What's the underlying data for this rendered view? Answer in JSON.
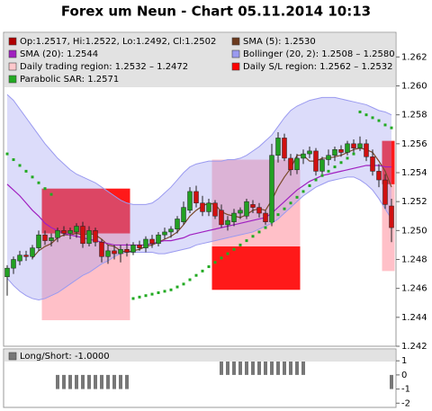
{
  "chart_data": [
    {
      "type": "candlestick",
      "title": "Forex um Neun - Chart 05.11.2014 10:13",
      "legend": [
        {
          "label": "Op:1.2517, Hi:1.2522, Lo:1.2492, Cl:1.2502",
          "color": "#b00000"
        },
        {
          "label": "SMA (5): 1.2530",
          "color": "#6b3a1e"
        },
        {
          "label": "SMA (20): 1.2544",
          "color": "#a020c0"
        },
        {
          "label": "Bollinger (20, 2): 1.2508 – 1.2580",
          "color": "#9a9af0"
        },
        {
          "label": "Daily trading region: 1.2532 – 1.2472",
          "color": "#ffc8cc"
        },
        {
          "label": "Daily S/L region: 1.2562 – 1.2532",
          "color": "#ff0000"
        },
        {
          "label": "Parabolic SAR: 1.2571",
          "color": "#22aa22"
        }
      ],
      "ohlc": {
        "up_color": "#22a022",
        "down_color": "#d01010",
        "open": [
          1.2468,
          1.2474,
          1.2479,
          1.2483,
          1.2482,
          1.2488,
          1.2497,
          1.2493,
          1.2495,
          1.25,
          1.2498,
          1.2499,
          1.2503,
          1.2491,
          1.25,
          1.2492,
          1.2482,
          1.2486,
          1.2484,
          1.2487,
          1.2485,
          1.249,
          1.2488,
          1.2494,
          1.2491,
          1.2497,
          1.2499,
          1.2501,
          1.2506,
          1.2514,
          1.2527,
          1.2519,
          1.2513,
          1.2519,
          1.2514,
          1.2504,
          1.2506,
          1.2512,
          1.251,
          1.2518,
          1.2516,
          1.2512,
          1.2506,
          1.2552,
          1.2564,
          1.255,
          1.2542,
          1.255,
          1.2553,
          1.2555,
          1.2541,
          1.2549,
          1.2552,
          1.2556,
          1.2554,
          1.256,
          1.2557,
          1.256,
          1.2551,
          1.2541,
          1.2535,
          1.2517
        ],
        "high": [
          1.2476,
          1.2482,
          1.2486,
          1.2486,
          1.249,
          1.25,
          1.25,
          1.2498,
          1.2502,
          1.2503,
          1.2502,
          1.2505,
          1.2506,
          1.2503,
          1.2502,
          1.2494,
          1.249,
          1.249,
          1.249,
          1.2491,
          1.2492,
          1.2493,
          1.2496,
          1.2497,
          1.2499,
          1.2502,
          1.2503,
          1.251,
          1.252,
          1.253,
          1.2531,
          1.2524,
          1.2522,
          1.2521,
          1.2518,
          1.251,
          1.2515,
          1.2516,
          1.2522,
          1.2521,
          1.2519,
          1.2514,
          1.256,
          1.2568,
          1.2567,
          1.2553,
          1.2553,
          1.2556,
          1.2558,
          1.2557,
          1.2551,
          1.2556,
          1.2558,
          1.2559,
          1.2562,
          1.2563,
          1.2565,
          1.2563,
          1.2556,
          1.2546,
          1.2539,
          1.2522
        ],
        "low": [
          1.2455,
          1.247,
          1.2476,
          1.2479,
          1.248,
          1.2486,
          1.249,
          1.2489,
          1.2492,
          1.2496,
          1.2494,
          1.2495,
          1.2488,
          1.2489,
          1.2489,
          1.2478,
          1.2477,
          1.248,
          1.2478,
          1.2482,
          1.2483,
          1.2486,
          1.2485,
          1.2488,
          1.2489,
          1.2494,
          1.2495,
          1.2498,
          1.2504,
          1.2512,
          1.2516,
          1.251,
          1.251,
          1.2508,
          1.2502,
          1.25,
          1.2503,
          1.2508,
          1.2508,
          1.2512,
          1.2509,
          1.2504,
          1.2503,
          1.2547,
          1.2548,
          1.2538,
          1.2539,
          1.2546,
          1.255,
          1.2538,
          1.2539,
          1.2545,
          1.2548,
          1.2551,
          1.2552,
          1.2554,
          1.2555,
          1.2548,
          1.2538,
          1.253,
          1.2515,
          1.2492
        ],
        "close": [
          1.2474,
          1.248,
          1.2483,
          1.2482,
          1.2488,
          1.2497,
          1.2493,
          1.2495,
          1.25,
          1.2498,
          1.25,
          1.2503,
          1.2491,
          1.25,
          1.2492,
          1.2482,
          1.2486,
          1.2484,
          1.2487,
          1.2485,
          1.249,
          1.2488,
          1.2494,
          1.2491,
          1.2497,
          1.2499,
          1.2501,
          1.2508,
          1.2516,
          1.2527,
          1.2519,
          1.2513,
          1.2519,
          1.251,
          1.2504,
          1.2507,
          1.2512,
          1.2514,
          1.252,
          1.2516,
          1.2512,
          1.2506,
          1.2552,
          1.2564,
          1.255,
          1.2542,
          1.255,
          1.2553,
          1.2555,
          1.2541,
          1.2549,
          1.2552,
          1.2556,
          1.2554,
          1.256,
          1.2557,
          1.256,
          1.2551,
          1.2541,
          1.2535,
          1.2518,
          1.2502
        ]
      },
      "band": {
        "color": "#9a9af0",
        "upper": [
          1.2594,
          1.259,
          1.2584,
          1.2578,
          1.2572,
          1.2566,
          1.256,
          1.2555,
          1.255,
          1.2546,
          1.2542,
          1.2539,
          1.2537,
          1.2535,
          1.2533,
          1.253,
          1.2527,
          1.2524,
          1.2521,
          1.2519,
          1.2518,
          1.2518,
          1.2518,
          1.2519,
          1.2522,
          1.2526,
          1.253,
          1.2535,
          1.254,
          1.2544,
          1.2546,
          1.2547,
          1.2548,
          1.2548,
          1.2548,
          1.2549,
          1.2549,
          1.255,
          1.2552,
          1.2555,
          1.2558,
          1.2562,
          1.2566,
          1.2572,
          1.2578,
          1.2583,
          1.2586,
          1.2588,
          1.259,
          1.2591,
          1.2592,
          1.2592,
          1.2592,
          1.2591,
          1.259,
          1.2589,
          1.2588,
          1.2587,
          1.2585,
          1.2583,
          1.2582,
          1.258
        ],
        "lower": [
          1.2467,
          1.2462,
          1.2458,
          1.2455,
          1.2453,
          1.2452,
          1.2453,
          1.2455,
          1.2457,
          1.246,
          1.2463,
          1.2466,
          1.2469,
          1.2471,
          1.2474,
          1.2477,
          1.2479,
          1.2482,
          1.2484,
          1.2485,
          1.2485,
          1.2485,
          1.2485,
          1.2485,
          1.2484,
          1.2484,
          1.2485,
          1.2486,
          1.2487,
          1.2488,
          1.249,
          1.2491,
          1.2492,
          1.2493,
          1.2494,
          1.2495,
          1.2496,
          1.2497,
          1.2498,
          1.2499,
          1.2501,
          1.2503,
          1.2505,
          1.2508,
          1.2512,
          1.2516,
          1.252,
          1.2524,
          1.2527,
          1.253,
          1.2532,
          1.2534,
          1.2535,
          1.2536,
          1.2537,
          1.2537,
          1.2535,
          1.2532,
          1.2528,
          1.2522,
          1.2515,
          1.2508
        ]
      },
      "series": [
        {
          "kind": "line",
          "color": "#7a4a2a",
          "values": [
            null,
            null,
            null,
            null,
            1.2481,
            1.2486,
            1.2489,
            1.2491,
            1.2495,
            1.2497,
            1.2497,
            1.2498,
            1.2497,
            1.2498,
            1.2497,
            1.2494,
            1.249,
            1.2489,
            1.2486,
            1.2485,
            1.2486,
            1.2487,
            1.2489,
            1.249,
            1.2492,
            1.2494,
            1.2496,
            1.2499,
            1.2504,
            1.251,
            1.2514,
            1.2517,
            1.2519,
            1.2518,
            1.2513,
            1.2511,
            1.251,
            1.2509,
            1.2511,
            1.2514,
            1.2515,
            1.2514,
            1.2521,
            1.253,
            1.2537,
            1.2543,
            1.2552,
            1.2552,
            1.2548,
            1.2548,
            1.255,
            1.255,
            1.2551,
            1.2552,
            1.2554,
            1.2556,
            1.2557,
            1.2556,
            1.2554,
            1.2548,
            1.2541,
            1.253
          ]
        },
        {
          "kind": "line",
          "color": "#a020c0",
          "values": [
            1.2532,
            1.2528,
            1.2524,
            1.2519,
            1.2514,
            1.251,
            1.2505,
            1.2502,
            1.25,
            1.2498,
            1.2497,
            1.2496,
            1.2495,
            1.2494,
            1.2493,
            1.2492,
            1.2491,
            1.249,
            1.249,
            1.249,
            1.249,
            1.249,
            1.249,
            1.2491,
            1.2492,
            1.2493,
            1.2493,
            1.2494,
            1.2495,
            1.2497,
            1.2498,
            1.2499,
            1.25,
            1.2501,
            1.2502,
            1.2503,
            1.2504,
            1.2505,
            1.2506,
            1.2507,
            1.2508,
            1.2509,
            1.2512,
            1.2516,
            1.252,
            1.2524,
            1.2528,
            1.2531,
            1.2534,
            1.2536,
            1.2538,
            1.2539,
            1.254,
            1.2541,
            1.2542,
            1.2543,
            1.2544,
            1.2545,
            1.2545,
            1.2545,
            1.2544,
            1.2544
          ]
        },
        {
          "kind": "dots",
          "color": "#22aa22",
          "values": [
            1.2553,
            1.2549,
            1.2545,
            1.2541,
            1.2537,
            1.2533,
            1.2529,
            1.2525,
            null,
            null,
            null,
            null,
            null,
            null,
            null,
            null,
            null,
            null,
            null,
            null,
            1.2453,
            1.2454,
            1.2455,
            1.2456,
            1.2457,
            1.2458,
            1.2459,
            1.2461,
            1.2463,
            1.2466,
            1.2469,
            1.2472,
            1.2475,
            1.2478,
            1.2481,
            1.2484,
            1.2487,
            1.249,
            1.2493,
            1.2496,
            1.2499,
            1.2502,
            1.2506,
            1.2511,
            1.2515,
            1.2519,
            1.2523,
            1.2527,
            1.2531,
            1.2535,
            1.2538,
            1.2541,
            1.2544,
            1.2547,
            1.255,
            1.2553,
            1.2582,
            1.258,
            1.2578,
            1.2576,
            1.2573,
            1.2571
          ]
        }
      ],
      "regions": [
        {
          "start": 6,
          "end": 19,
          "trading": [
            1.2498,
            1.2438
          ],
          "sl": [
            1.2529,
            1.2498
          ]
        },
        {
          "start": 33,
          "end": 46,
          "trading": [
            1.2549,
            1.2489
          ],
          "sl": [
            1.2489,
            1.2459
          ]
        },
        {
          "start": 60,
          "end": 61,
          "trading": [
            1.2532,
            1.2472
          ],
          "sl": [
            1.2562,
            1.2532
          ]
        }
      ],
      "trading_color": "#ffc0c8",
      "sl_color": "#ff0000",
      "ylim": [
        1.242,
        1.2637
      ],
      "yticks": [
        1.242,
        1.244,
        1.246,
        1.248,
        {
          "value": 1.25,
          "label": "1.250"
        },
        1.252,
        1.254,
        1.256,
        1.258,
        {
          "value": 1.26,
          "label": "1.260"
        },
        1.262
      ]
    },
    {
      "type": "bar",
      "legend": [
        {
          "label": "Long/Short: -1.0000",
          "color": "#777777"
        }
      ],
      "color": "#777777",
      "values": [
        0,
        0,
        0,
        0,
        0,
        0,
        0,
        0,
        -1,
        -1,
        -1,
        -1,
        -1,
        -1,
        -1,
        -1,
        -1,
        -1,
        -1,
        -1,
        0,
        0,
        0,
        0,
        0,
        0,
        0,
        0,
        0,
        0,
        0,
        0,
        0,
        0,
        1,
        1,
        1,
        1,
        1,
        1,
        1,
        1,
        1,
        1,
        1,
        1,
        1,
        1,
        0,
        0,
        0,
        0,
        0,
        0,
        0,
        0,
        0,
        0,
        0,
        0,
        0,
        -1
      ],
      "ylim": [
        -2.3,
        1.84
      ],
      "yticks": [
        1,
        0,
        -1,
        -2
      ]
    }
  ]
}
